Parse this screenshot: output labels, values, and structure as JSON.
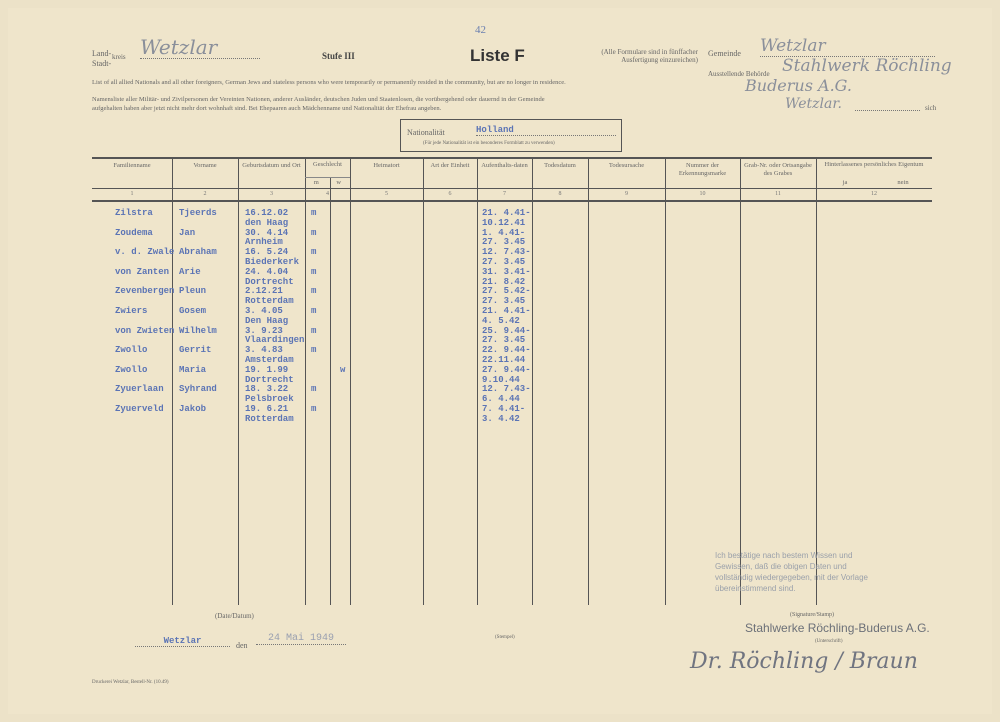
{
  "page_number": "42",
  "header": {
    "kreis_label_land": "Land-",
    "kreis_label_stadt": "Stadt-",
    "kreis_label": "kreis",
    "kreis_value": "Wetzlar",
    "stufe": "Stufe III",
    "title": "Liste F",
    "note": "(Alle Formulare sind in fünffacher Ausfertigung einzureichen)",
    "gemeinde_label": "Gemeinde",
    "gemeinde_value": "Wetzlar",
    "behoerde_label": "Ausstellende Behörde",
    "behoerde_value_1": "Stahlwerk Röchling",
    "behoerde_value_2": "Buderus A.G.",
    "behoerde_value_3": "Wetzlar.",
    "english_line": "List of all allied Nationals and all other foreigners, German Jews and stateless persons who were temporarily or permanently resided in the community, but are no longer in residence.",
    "german_line_1": "Namensliste aller Militär- und Zivilpersonen der Vereinten Nationen, anderer Ausländer, deutschen Juden und Staatenlosen, die vorübergehend oder dauernd in der Gemeinde",
    "german_line_2": "aufgehalten haben aber jetzt nicht mehr dort wohnhaft sind. Bei Ehepaaren auch Mädchenname und Nationalität der Ehefrau angeben.",
    "sich": "sich",
    "nationality_label": "Nationalität",
    "nationality_value": "Holland",
    "nationality_note": "(Für jede Nationalität ist ein besonderes Formblatt zu verwenden)"
  },
  "columns": [
    {
      "label": "Familienname",
      "num": "1"
    },
    {
      "label": "Vorname",
      "num": "2"
    },
    {
      "label": "Geburtsdatum und Ort",
      "num": "3"
    },
    {
      "label": "Geschlecht",
      "num": "4",
      "sub": [
        "m",
        "w"
      ]
    },
    {
      "label": "Heimatort",
      "num": "5"
    },
    {
      "label": "Art der Einheit",
      "num": "6"
    },
    {
      "label": "Aufenthalts-daten",
      "num": "7"
    },
    {
      "label": "Todesdatum",
      "num": "8"
    },
    {
      "label": "Todesursache",
      "num": "9"
    },
    {
      "label": "Nummer der Erkennungsmarke",
      "num": "10"
    },
    {
      "label": "Grab-Nr. oder Ortsangabe des Grabes",
      "num": "11"
    },
    {
      "label": "Hinterlassenes persönliches Eigentum",
      "num": "12",
      "sub": [
        "ja",
        "nein"
      ]
    }
  ],
  "rows": [
    {
      "surname": "Zilstra",
      "first": "Tjeerds",
      "birth": "16.12.02",
      "place": "den Haag",
      "sex": "m",
      "dates": [
        "21. 4.41-",
        "10.12.41"
      ]
    },
    {
      "surname": "Zoudema",
      "first": "Jan",
      "birth": "30. 4.14",
      "place": "Arnheim",
      "sex": "m",
      "dates": [
        "1. 4.41-",
        "27. 3.45"
      ]
    },
    {
      "surname": "v. d. Zwale",
      "first": "Abraham",
      "birth": "16. 5.24",
      "place": "Biederkerk",
      "sex": "m",
      "dates": [
        "12. 7.43-",
        "27. 3.45"
      ]
    },
    {
      "surname": "von Zanten",
      "first": "Arie",
      "birth": "24. 4.04",
      "place": "Dortrecht",
      "sex": "m",
      "dates": [
        "31. 3.41-",
        "21. 8.42"
      ]
    },
    {
      "surname": "Zevenbergen",
      "first": "Pleun",
      "birth": "2.12.21",
      "place": "Rotterdam",
      "sex": "m",
      "dates": [
        "27. 5.42-",
        "27. 3.45"
      ]
    },
    {
      "surname": "Zwiers",
      "first": "Gosem",
      "birth": "3. 4.05",
      "place": "Den Haag",
      "sex": "m",
      "dates": [
        "21. 4.41-",
        "4. 5.42"
      ]
    },
    {
      "surname": "von Zwieten",
      "first": "Wilhelm",
      "birth": "3. 9.23",
      "place": "Vlaardingen",
      "sex": "m",
      "dates": [
        "25. 9.44-",
        "27. 3.45"
      ]
    },
    {
      "surname": "Zwollo",
      "first": "Gerrit",
      "birth": "3. 4.83",
      "place": "Amsterdam",
      "sex": "m",
      "dates": [
        "22. 9.44-",
        "22.11.44"
      ]
    },
    {
      "surname": "Zwollo",
      "first": "Maria",
      "birth": "19. 1.99",
      "place": "Dortrecht",
      "sex": "w",
      "dates": [
        "27. 9.44-",
        "9.10.44"
      ]
    },
    {
      "surname": "Zyuerlaan",
      "first": "Syhrand",
      "birth": "18. 3.22",
      "place": "Pelsbroek",
      "sex": "m",
      "dates": [
        "12. 7.43-",
        "6. 4.44"
      ]
    },
    {
      "surname": "Zyuerveld",
      "first": "Jakob",
      "birth": "19. 6.21",
      "place": "Rotterdam",
      "sex": "m",
      "dates": [
        "7. 4.41-",
        "3. 4.42"
      ]
    }
  ],
  "footer": {
    "date_place_label": "(Date/Datum)",
    "place_value": "Wetzlar",
    "den": "den",
    "date_value": "24 Mai 1949",
    "stempel": "(Stempel)",
    "signature_label": "(Signature/Stamp)",
    "company": "Stahlwerke Röchling-Buderus A.G.",
    "unterschrift": "(Unterschrift)",
    "signature": "Dr. Röchling / Braun",
    "stamp_text": [
      "Ich bestätige nach bestem Wissen und",
      "Gewissen, daß die obigen Daten und",
      "vollständig wiedergegeben, mit der Vorlage",
      "übereinstimmend sind."
    ],
    "printer": "Druckerei Wetzlar, Bestell-Nr. (10.49)"
  }
}
